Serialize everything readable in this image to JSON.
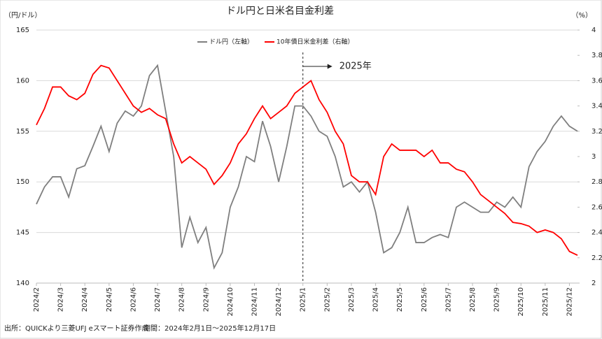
{
  "chart_data": {
    "type": "line",
    "title": "ドル円と日米名目金利差",
    "y_label": "（円/ドル）",
    "y2_label": "（%）",
    "annotation": "2025年",
    "source": "出所：QUICKより三菱UFJ eスマート証券作成",
    "period": "期間：2024年2月1日～2025年12月17日",
    "categories": [
      "2024/2",
      null,
      null,
      "2024/3",
      null,
      null,
      "2024/4",
      null,
      null,
      "2024/5",
      null,
      null,
      "2024/6",
      null,
      null,
      "2024/7",
      null,
      null,
      "2024/8",
      null,
      null,
      "2024/9",
      null,
      null,
      "2024/10",
      null,
      null,
      "2024/11",
      null,
      null,
      "2024/12",
      null,
      null,
      "2025/1",
      null,
      null,
      "2025/2",
      null,
      null,
      "2025/3",
      null,
      null,
      "2025/4",
      null,
      null,
      "2025/5",
      null,
      null,
      "2025/6",
      null,
      null,
      "2025/7",
      null,
      null,
      "2025/8",
      null,
      null,
      "2025/9",
      null,
      null,
      "2025/10",
      null,
      null,
      "2025/11",
      null,
      null,
      "2025/12",
      null
    ],
    "series": [
      {
        "name": "ドル円（左軸）",
        "color": "#7f7f7f",
        "axis": "y",
        "values": [
          147.8,
          149.5,
          150.5,
          150.5,
          148.5,
          151.3,
          151.6,
          153.5,
          155.5,
          153.0,
          155.8,
          157.0,
          156.5,
          157.5,
          160.5,
          161.5,
          157.0,
          152.5,
          143.5,
          146.5,
          144.0,
          145.5,
          141.5,
          143.0,
          147.5,
          149.5,
          152.5,
          152.0,
          156.0,
          153.5,
          150.0,
          153.5,
          157.5,
          157.5,
          156.5,
          155.0,
          154.5,
          152.5,
          149.5,
          150.0,
          149.0,
          150.0,
          147.0,
          143.0,
          143.5,
          145.0,
          147.5,
          144.0,
          144.0,
          144.5,
          144.8,
          144.5,
          147.5,
          148.0,
          147.5,
          147.0,
          147.0,
          148.0,
          147.5,
          148.5,
          147.5,
          151.5,
          153.0,
          154.0,
          155.5,
          156.5,
          155.5,
          155.0
        ]
      },
      {
        "name": "10年債日米金利差（右軸）",
        "color": "#ff0000",
        "axis": "y2",
        "values": [
          3.25,
          3.38,
          3.55,
          3.55,
          3.48,
          3.45,
          3.5,
          3.65,
          3.72,
          3.7,
          3.6,
          3.5,
          3.4,
          3.35,
          3.38,
          3.33,
          3.3,
          3.1,
          2.95,
          3.0,
          2.95,
          2.9,
          2.78,
          2.85,
          2.95,
          3.1,
          3.18,
          3.3,
          3.4,
          3.3,
          3.35,
          3.4,
          3.5,
          3.55,
          3.6,
          3.45,
          3.35,
          3.2,
          3.1,
          2.85,
          2.8,
          2.8,
          2.7,
          3.0,
          3.1,
          3.05,
          3.05,
          3.05,
          3.0,
          3.05,
          2.95,
          2.95,
          2.9,
          2.88,
          2.8,
          2.7,
          2.65,
          2.6,
          2.55,
          2.48,
          2.47,
          2.45,
          2.4,
          2.42,
          2.4,
          2.35,
          2.25,
          2.22
        ]
      }
    ],
    "ylim": [
      140,
      165
    ],
    "yticks": [
      140,
      145,
      150,
      155,
      160,
      165
    ],
    "y2lim": [
      2,
      4
    ],
    "y2ticks": [
      2,
      2.2,
      2.4,
      2.6,
      2.8,
      3,
      3.2,
      3.4,
      3.6,
      3.8,
      4
    ],
    "grid": true
  }
}
